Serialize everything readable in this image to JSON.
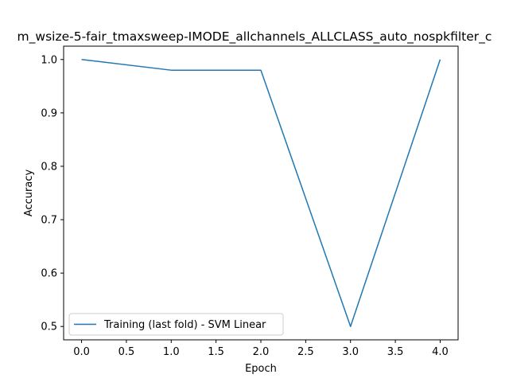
{
  "chart_data": {
    "type": "line",
    "title": "m_wsize-5-fair_tmaxsweep-IMODE_allchannels_ALLCLASS_auto_nospkfilter_c",
    "xlabel": "Epoch",
    "ylabel": "Accuracy",
    "xlim": [
      -0.2,
      4.2
    ],
    "ylim": [
      0.475,
      1.025
    ],
    "xticks": [
      0.0,
      0.5,
      1.0,
      1.5,
      2.0,
      2.5,
      3.0,
      3.5,
      4.0
    ],
    "xtick_labels": [
      "0.0",
      "0.5",
      "1.0",
      "1.5",
      "2.0",
      "2.5",
      "3.0",
      "3.5",
      "4.0"
    ],
    "yticks": [
      0.5,
      0.6,
      0.7,
      0.8,
      0.9,
      1.0
    ],
    "ytick_labels": [
      "0.5",
      "0.6",
      "0.7",
      "0.8",
      "0.9",
      "1.0"
    ],
    "grid": false,
    "legend_position": "lower-left",
    "series": [
      {
        "name": "Training (last fold) - SVM Linear",
        "color": "#1f77b4",
        "x": [
          0,
          1,
          2,
          3,
          4
        ],
        "y": [
          1.0,
          0.98,
          0.98,
          0.5,
          1.0
        ]
      }
    ]
  }
}
